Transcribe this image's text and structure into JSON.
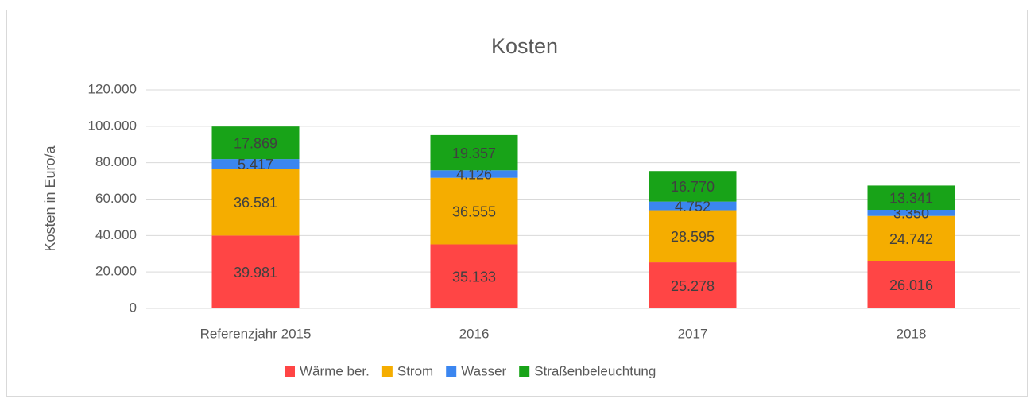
{
  "chart_data": {
    "type": "stacked_bar",
    "title": "Kosten",
    "y_label": "Kosten in Euro/a",
    "categories": [
      "Referenzjahr 2015",
      "2016",
      "2017",
      "2018"
    ],
    "series": [
      {
        "name": "Wärme ber.",
        "color": "#ff4545",
        "values": [
          39981,
          35133,
          25278,
          26016
        ],
        "value_labels": [
          "39.981",
          "35.133",
          "25.278",
          "26.016"
        ]
      },
      {
        "name": "Strom",
        "color": "#f5ad00",
        "values": [
          36581,
          36555,
          28595,
          24742
        ],
        "value_labels": [
          "36.581",
          "36.555",
          "28.595",
          "24.742"
        ]
      },
      {
        "name": "Wasser",
        "color": "#3b86f0",
        "values": [
          5417,
          4126,
          4752,
          3350
        ],
        "value_labels": [
          "5.417",
          "4.126",
          "4.752",
          "3.350"
        ]
      },
      {
        "name": "Straßenbeleuchtung",
        "color": "#18a318",
        "values": [
          17869,
          19357,
          16770,
          13341
        ],
        "value_labels": [
          "17.869",
          "19.357",
          "16.770",
          "13.341"
        ]
      }
    ],
    "ylim": [
      0,
      120000
    ],
    "yticks": [
      0,
      {
        "value": 20000,
        "label": "20.000"
      },
      {
        "value": 40000,
        "label": "40.000"
      },
      {
        "value": 60000,
        "label": "60.000"
      },
      {
        "value": 80000,
        "label": "80.000"
      },
      {
        "value": 100000,
        "label": "100.000"
      },
      {
        "value": 120000,
        "label": "120.000"
      }
    ],
    "grid": true,
    "legend": "bottom"
  }
}
